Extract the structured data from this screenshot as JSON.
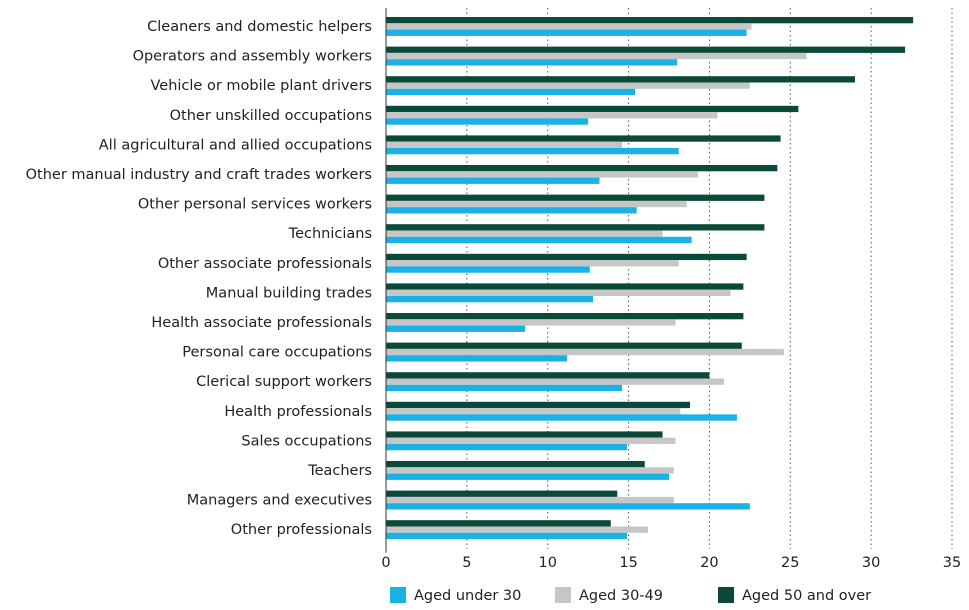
{
  "chart_data": {
    "type": "hbar",
    "categories": [
      "Cleaners and domestic helpers",
      "Operators and assembly workers",
      "Vehicle or mobile plant drivers",
      "Other unskilled occupations",
      "All agricultural and allied occupations",
      "Other manual industry and craft trades workers",
      "Other personal services workers",
      "Technicians",
      "Other associate professionals",
      "Manual building trades",
      "Health associate professionals",
      "Personal care occupations",
      "Clerical support workers",
      "Health professionals",
      "Sales occupations",
      "Teachers",
      "Managers and executives",
      "Other professionals"
    ],
    "series": [
      {
        "name": "Aged 50 and over",
        "color": "#0b4a3b",
        "values": [
          32.6,
          32.1,
          29.0,
          25.5,
          24.4,
          24.2,
          23.4,
          23.4,
          22.3,
          22.1,
          22.1,
          22.0,
          20.0,
          18.8,
          17.1,
          16.0,
          14.3,
          13.9
        ]
      },
      {
        "name": "Aged 30-49",
        "color": "#c6c6c6",
        "values": [
          22.6,
          26.0,
          22.5,
          20.5,
          14.6,
          19.3,
          18.6,
          17.1,
          18.1,
          21.3,
          17.9,
          24.6,
          20.9,
          18.2,
          17.9,
          17.8,
          17.8,
          16.2
        ]
      },
      {
        "name": "Aged under 30",
        "color": "#19b1e6",
        "values": [
          22.3,
          18.0,
          15.4,
          12.5,
          18.1,
          13.2,
          15.5,
          18.9,
          12.6,
          12.8,
          8.6,
          11.2,
          14.6,
          21.7,
          14.9,
          17.5,
          22.5,
          14.9
        ]
      }
    ],
    "legend_order": [
      "Aged under 30",
      "Aged 30-49",
      "Aged 50 and over"
    ],
    "xlim": [
      0,
      35
    ],
    "xticks": [
      0,
      5,
      10,
      15,
      20,
      25,
      30,
      35
    ],
    "grid": true,
    "legend": "bottom"
  }
}
